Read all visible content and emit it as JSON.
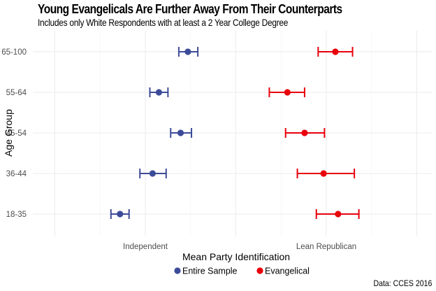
{
  "chart_data": {
    "type": "errorbar-dot",
    "title": "Young Evangelicals Are Further Away From Their Counterparts",
    "subtitle": "Includes only White Respondents with at least a 2 Year College Degree",
    "xlabel": "Mean Party Identification",
    "ylabel": "Age Group",
    "caption": "Data: CCES 2016",
    "x_ticks": [
      {
        "value": 3,
        "label": "Independent"
      },
      {
        "value": 5,
        "label": "Lean Republican"
      }
    ],
    "xlim": [
      1.9,
      6.0
    ],
    "categories": [
      "18-35",
      "36-44",
      "45-54",
      "55-64",
      "65-100"
    ],
    "series": [
      {
        "name": "Entire Sample",
        "color": "#3c4b99",
        "points": [
          {
            "category": "18-35",
            "mean": 2.72,
            "lower": 2.62,
            "upper": 2.82
          },
          {
            "category": "36-44",
            "mean": 3.08,
            "lower": 2.94,
            "upper": 3.23
          },
          {
            "category": "45-54",
            "mean": 3.39,
            "lower": 3.28,
            "upper": 3.51
          },
          {
            "category": "55-64",
            "mean": 3.15,
            "lower": 3.05,
            "upper": 3.25
          },
          {
            "category": "65-100",
            "mean": 3.47,
            "lower": 3.37,
            "upper": 3.58
          }
        ]
      },
      {
        "name": "Evangelical",
        "color": "#e8000b",
        "points": [
          {
            "category": "18-35",
            "mean": 5.13,
            "lower": 4.89,
            "upper": 5.36
          },
          {
            "category": "36-44",
            "mean": 4.97,
            "lower": 4.68,
            "upper": 5.31
          },
          {
            "category": "45-54",
            "mean": 4.76,
            "lower": 4.55,
            "upper": 4.98
          },
          {
            "category": "55-64",
            "mean": 4.57,
            "lower": 4.37,
            "upper": 4.76
          },
          {
            "category": "65-100",
            "mean": 5.1,
            "lower": 4.91,
            "upper": 5.29
          }
        ]
      }
    ],
    "legend_position": "bottom",
    "grid": true
  }
}
